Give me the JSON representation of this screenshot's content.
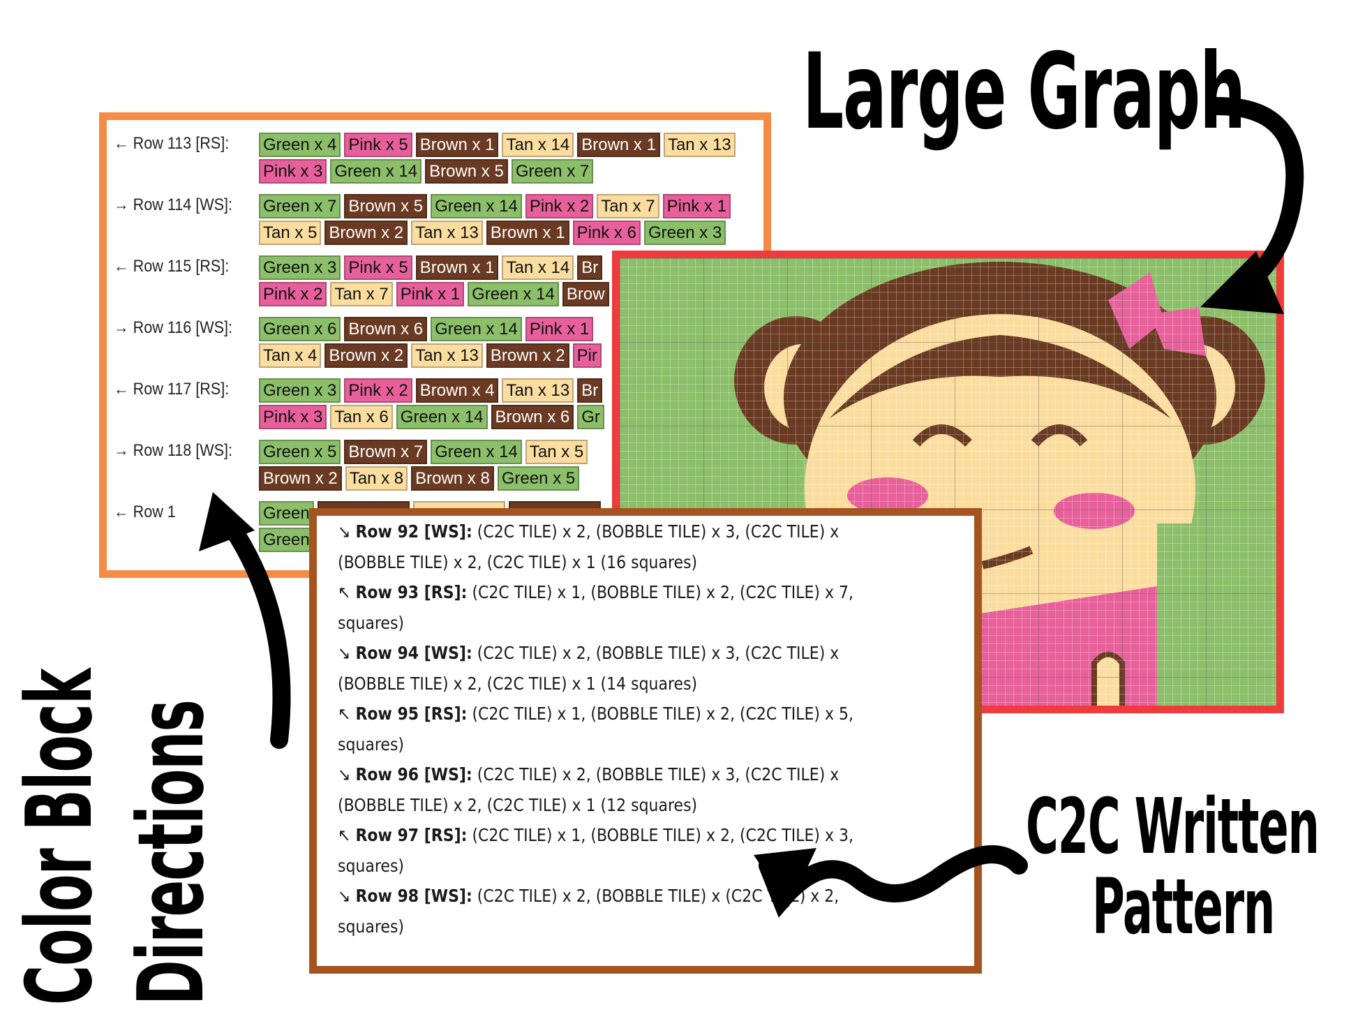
{
  "colors": {
    "Green": "#8cbf6a",
    "Pink": "#e8609b",
    "Brown": "#6a3a22",
    "Tan": "#fbdd9f",
    "panel_orange": "#f48c45",
    "panel_red": "#ef3b3b",
    "panel_brown": "#a5531f"
  },
  "labels": {
    "large_graph": "Large Graph",
    "color_block_line1": "Color Block",
    "color_block_line2": "Directions",
    "c2c_line1": "C2C Written",
    "c2c_line2": "Pattern"
  },
  "color_block": {
    "rows": [
      {
        "label": "← Row 113 [RS]:",
        "lines": [
          [
            {
              "c": "Green",
              "t": "Green x 4"
            },
            {
              "c": "Pink",
              "t": "Pink x 5"
            },
            {
              "c": "Brown",
              "t": "Brown x 1"
            },
            {
              "c": "Tan",
              "t": "Tan x 14"
            },
            {
              "c": "Brown",
              "t": "Brown x 1"
            },
            {
              "c": "Tan",
              "t": "Tan x 13"
            }
          ],
          [
            {
              "c": "Pink",
              "t": "Pink x 3"
            },
            {
              "c": "Green",
              "t": "Green x 14"
            },
            {
              "c": "Brown",
              "t": "Brown x 5"
            },
            {
              "c": "Green",
              "t": "Green x 7"
            }
          ]
        ]
      },
      {
        "label": "→ Row 114 [WS]:",
        "lines": [
          [
            {
              "c": "Green",
              "t": "Green x 7"
            },
            {
              "c": "Brown",
              "t": "Brown x 5"
            },
            {
              "c": "Green",
              "t": "Green x 14"
            },
            {
              "c": "Pink",
              "t": "Pink x 2"
            },
            {
              "c": "Tan",
              "t": "Tan x 7"
            },
            {
              "c": "Pink",
              "t": "Pink x 1"
            }
          ],
          [
            {
              "c": "Tan",
              "t": "Tan x 5"
            },
            {
              "c": "Brown",
              "t": "Brown x 2"
            },
            {
              "c": "Tan",
              "t": "Tan x 13"
            },
            {
              "c": "Brown",
              "t": "Brown x 1"
            },
            {
              "c": "Pink",
              "t": "Pink x 6"
            },
            {
              "c": "Green",
              "t": "Green x 3"
            }
          ]
        ]
      },
      {
        "label": "← Row 115 [RS]:",
        "lines": [
          [
            {
              "c": "Green",
              "t": "Green x 3"
            },
            {
              "c": "Pink",
              "t": "Pink x 5"
            },
            {
              "c": "Brown",
              "t": "Brown x 1"
            },
            {
              "c": "Tan",
              "t": "Tan x 14"
            },
            {
              "c": "Brown",
              "t": "Br"
            }
          ],
          [
            {
              "c": "Pink",
              "t": "Pink x 2"
            },
            {
              "c": "Tan",
              "t": "Tan x 7"
            },
            {
              "c": "Pink",
              "t": "Pink x 1"
            },
            {
              "c": "Green",
              "t": "Green x 14"
            },
            {
              "c": "Brown",
              "t": "Brow"
            }
          ]
        ]
      },
      {
        "label": "→ Row 116 [WS]:",
        "lines": [
          [
            {
              "c": "Green",
              "t": "Green x 6"
            },
            {
              "c": "Brown",
              "t": "Brown x 6"
            },
            {
              "c": "Green",
              "t": "Green x 14"
            },
            {
              "c": "Pink",
              "t": "Pink x 1"
            }
          ],
          [
            {
              "c": "Tan",
              "t": "Tan x 4"
            },
            {
              "c": "Brown",
              "t": "Brown x 2"
            },
            {
              "c": "Tan",
              "t": "Tan x 13"
            },
            {
              "c": "Brown",
              "t": "Brown x 2"
            },
            {
              "c": "Pink",
              "t": "Pir"
            }
          ]
        ]
      },
      {
        "label": "← Row 117 [RS]:",
        "lines": [
          [
            {
              "c": "Green",
              "t": "Green x 3"
            },
            {
              "c": "Pink",
              "t": "Pink x 2"
            },
            {
              "c": "Brown",
              "t": "Brown x 4"
            },
            {
              "c": "Tan",
              "t": "Tan x 13"
            },
            {
              "c": "Brown",
              "t": "Br"
            }
          ],
          [
            {
              "c": "Pink",
              "t": "Pink x 3"
            },
            {
              "c": "Tan",
              "t": "Tan x 6"
            },
            {
              "c": "Green",
              "t": "Green x 14"
            },
            {
              "c": "Brown",
              "t": "Brown x 6"
            },
            {
              "c": "Green",
              "t": "Gr"
            }
          ]
        ]
      },
      {
        "label": "→ Row 118 [WS]:",
        "lines": [
          [
            {
              "c": "Green",
              "t": "Green x 5"
            },
            {
              "c": "Brown",
              "t": "Brown x 7"
            },
            {
              "c": "Green",
              "t": "Green x 14"
            },
            {
              "c": "Tan",
              "t": "Tan x 5"
            }
          ],
          [
            {
              "c": "Brown",
              "t": "Brown x 2"
            },
            {
              "c": "Tan",
              "t": "Tan x 8"
            },
            {
              "c": "Brown",
              "t": "Brown x 8"
            },
            {
              "c": "Green",
              "t": "Green x 5"
            }
          ]
        ]
      },
      {
        "label": "← Row 1",
        "lines": [
          [
            {
              "c": "Green",
              "t": "Green"
            },
            {
              "c": "Brown",
              "t": ""
            },
            {
              "c": "Tan",
              "t": ""
            },
            {
              "c": "Brown",
              "t": ""
            }
          ],
          [
            {
              "c": "Green",
              "t": "Green"
            }
          ]
        ]
      }
    ]
  },
  "written_pattern": {
    "lines": [
      {
        "arrow": "↘",
        "bold": "Row 92 [WS]:",
        "text": " (C2C TILE) x 2, (BOBBLE TILE) x 3, (C2C TILE) x"
      },
      {
        "arrow": "",
        "bold": "",
        "text": "(BOBBLE TILE) x 2, (C2C TILE) x 1 (16 squares)"
      },
      {
        "arrow": "↖",
        "bold": "Row 93 [RS]:",
        "text": " (C2C TILE) x 1, (BOBBLE TILE) x 2, (C2C TILE) x 7,"
      },
      {
        "arrow": "",
        "bold": "",
        "text": "squares)"
      },
      {
        "arrow": "↘",
        "bold": "Row 94 [WS]:",
        "text": " (C2C TILE) x 2, (BOBBLE TILE) x 3, (C2C TILE) x"
      },
      {
        "arrow": "",
        "bold": "",
        "text": "(BOBBLE TILE) x 2, (C2C TILE) x 1 (14 squares)"
      },
      {
        "arrow": "↖",
        "bold": "Row 95 [RS]:",
        "text": " (C2C TILE) x 1, (BOBBLE TILE) x 2, (C2C TILE) x 5,"
      },
      {
        "arrow": "",
        "bold": "",
        "text": "squares)"
      },
      {
        "arrow": "↘",
        "bold": "Row 96 [WS]:",
        "text": " (C2C TILE) x 2, (BOBBLE TILE) x 3, (C2C TILE) x"
      },
      {
        "arrow": "",
        "bold": "",
        "text": "(BOBBLE TILE) x 2, (C2C TILE) x 1 (12 squares)"
      },
      {
        "arrow": "↖",
        "bold": "Row 97 [RS]:",
        "text": " (C2C TILE) x 1, (BOBBLE TILE) x 2, (C2C TILE) x 3,"
      },
      {
        "arrow": "",
        "bold": "",
        "text": "squares)"
      },
      {
        "arrow": "↘",
        "bold": "Row 98 [WS]:",
        "text": " (C2C TILE) x 2, (BOBBLE TILE) x    (C2C TILE) x 2,"
      },
      {
        "arrow": "",
        "bold": "",
        "text": "squares)"
      }
    ]
  }
}
